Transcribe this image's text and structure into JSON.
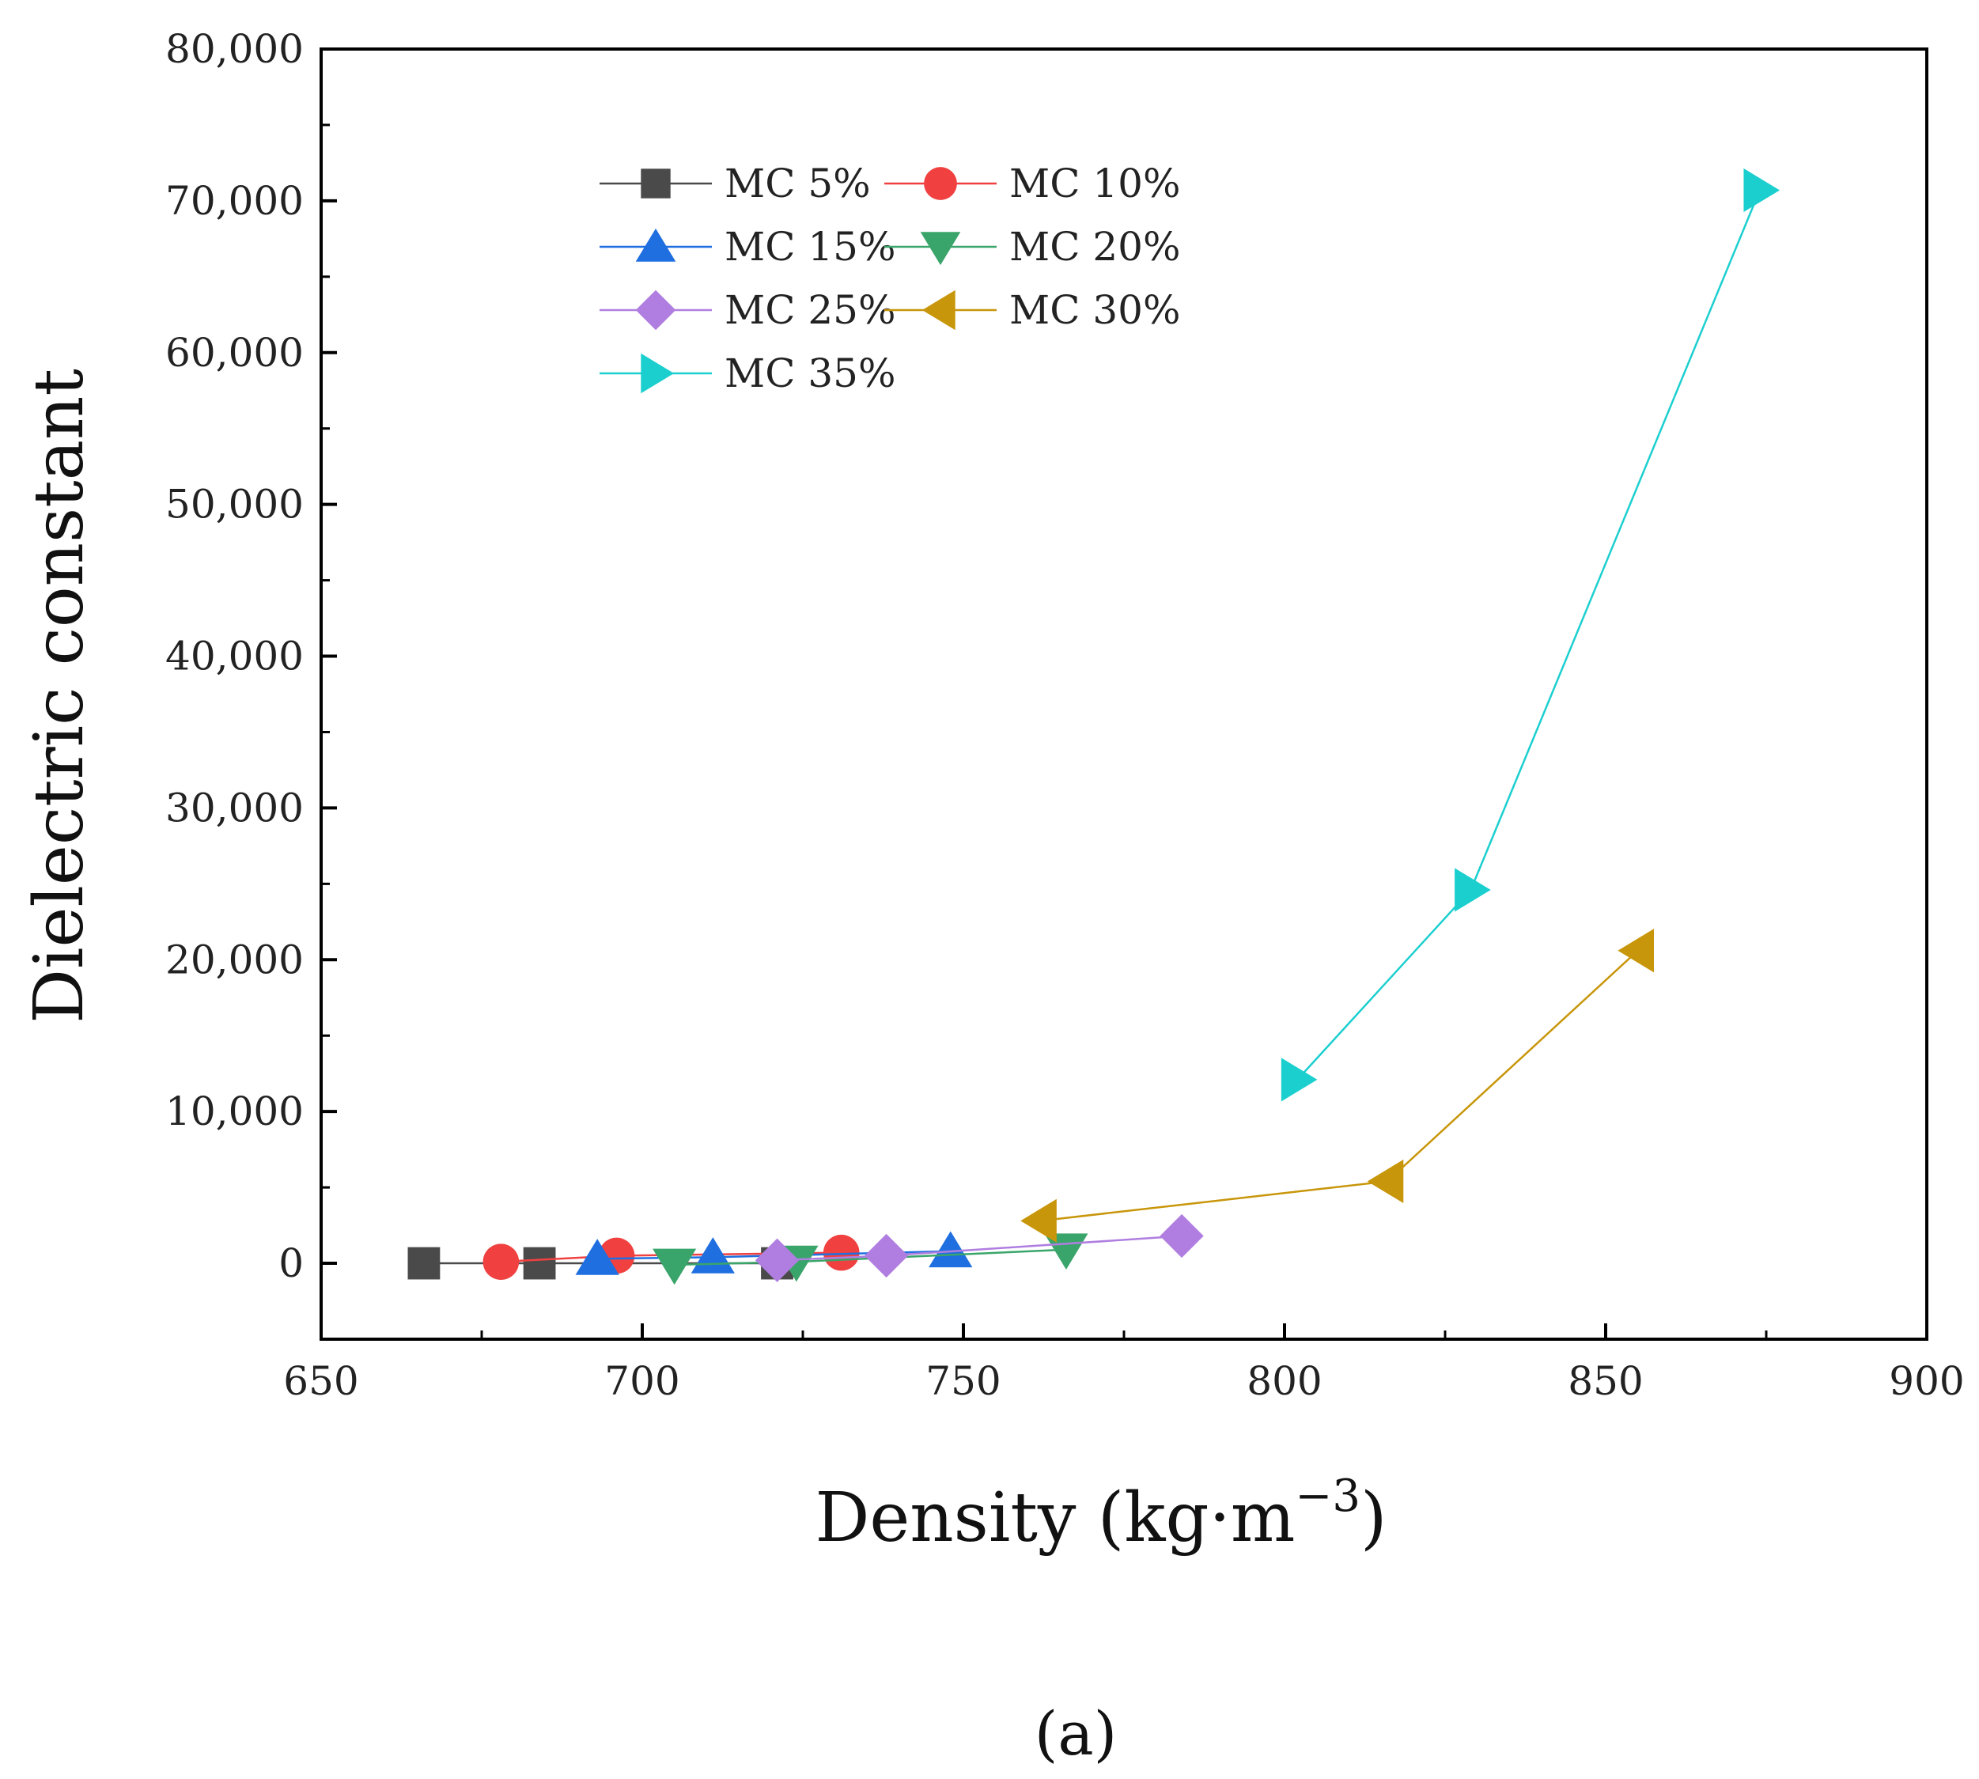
{
  "chart_data": {
    "type": "line",
    "xlabel": "Density (kg·m",
    "xlabel_superscript": "−3",
    "xlabel_suffix": ")",
    "ylabel": "Dielectric constant",
    "panel_label": "(a)",
    "xlim": [
      650,
      900
    ],
    "ylim": [
      -5000,
      80000
    ],
    "x_ticks": [
      650,
      700,
      750,
      800,
      850,
      900
    ],
    "x_tick_labels": [
      "650",
      "700",
      "750",
      "800",
      "850",
      "900"
    ],
    "y_ticks": [
      0,
      10000,
      20000,
      30000,
      40000,
      50000,
      60000,
      70000,
      80000
    ],
    "y_tick_labels": [
      "0",
      "10,000",
      "20,000",
      "30,000",
      "40,000",
      "50,000",
      "60,000",
      "70,000",
      "80,000"
    ],
    "grid": false,
    "legend_position": "top-left",
    "series": [
      {
        "name": "MC 5%",
        "color": "#4a4a4a",
        "marker": "square",
        "x": [
          666,
          684,
          721
        ],
        "y": [
          0,
          0,
          0
        ]
      },
      {
        "name": "MC 10%",
        "color": "#f04040",
        "marker": "circle",
        "x": [
          678,
          696,
          731
        ],
        "y": [
          100,
          500,
          700
        ]
      },
      {
        "name": "MC 15%",
        "color": "#1f6fe0",
        "marker": "triangle-up",
        "x": [
          693,
          711,
          748
        ],
        "y": [
          300,
          400,
          800
        ]
      },
      {
        "name": "MC 20%",
        "color": "#3aa56a",
        "marker": "triangle-down",
        "x": [
          705,
          724,
          766
        ],
        "y": [
          -100,
          100,
          900
        ]
      },
      {
        "name": "MC 25%",
        "color": "#b07ee0",
        "marker": "diamond",
        "x": [
          721,
          738,
          784
        ],
        "y": [
          200,
          500,
          1800
        ]
      },
      {
        "name": "MC 30%",
        "color": "#c8960a",
        "marker": "triangle-left",
        "x": [
          762,
          816,
          855
        ],
        "y": [
          2800,
          5400,
          20600
        ]
      },
      {
        "name": "MC 35%",
        "color": "#1ccfcf",
        "marker": "triangle-right",
        "x": [
          802,
          829,
          874
        ],
        "y": [
          12100,
          24600,
          70700
        ]
      }
    ]
  }
}
